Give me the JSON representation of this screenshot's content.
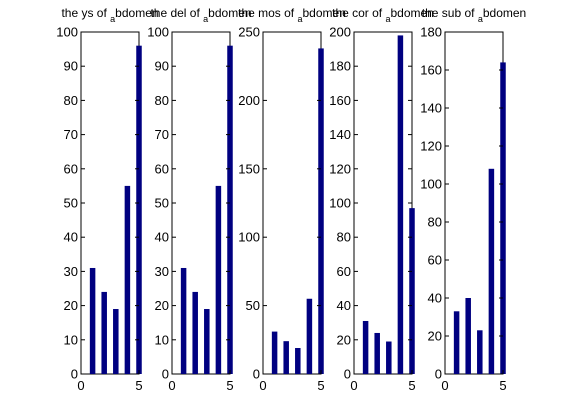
{
  "chart_data": [
    {
      "type": "bar",
      "title": {
        "prefix": "the ys of",
        "subscript": "a",
        "suffix": "bdomen"
      },
      "x": [
        1,
        2,
        3,
        4,
        5
      ],
      "values": [
        31,
        24,
        19,
        55,
        96
      ],
      "xlim": [
        0,
        5
      ],
      "xticks": [
        0,
        5
      ],
      "ylim": [
        0,
        100
      ],
      "yticks": [
        0,
        10,
        20,
        30,
        40,
        50,
        60,
        70,
        80,
        90,
        100
      ],
      "bar_color": "#000080",
      "grid": false
    },
    {
      "type": "bar",
      "title": {
        "prefix": "the del of",
        "subscript": "a",
        "suffix": "bdomen"
      },
      "x": [
        1,
        2,
        3,
        4,
        5
      ],
      "values": [
        31,
        24,
        19,
        55,
        96
      ],
      "xlim": [
        0,
        5
      ],
      "xticks": [
        0,
        5
      ],
      "ylim": [
        0,
        100
      ],
      "yticks": [
        0,
        10,
        20,
        30,
        40,
        50,
        60,
        70,
        80,
        90,
        100
      ],
      "bar_color": "#000080",
      "grid": false
    },
    {
      "type": "bar",
      "title": {
        "prefix": "the mos of",
        "subscript": "a",
        "suffix": "bdomen"
      },
      "x": [
        1,
        2,
        3,
        4,
        5
      ],
      "values": [
        31,
        24,
        19,
        55,
        238
      ],
      "xlim": [
        0,
        5
      ],
      "xticks": [
        0,
        5
      ],
      "ylim": [
        0,
        250
      ],
      "yticks": [
        0,
        50,
        100,
        150,
        200,
        250
      ],
      "bar_color": "#000080",
      "grid": false
    },
    {
      "type": "bar",
      "title": {
        "prefix": "the cor of",
        "subscript": "a",
        "suffix": "bdomen"
      },
      "x": [
        1,
        2,
        3,
        4,
        5
      ],
      "values": [
        31,
        24,
        19,
        198,
        97
      ],
      "xlim": [
        0,
        5
      ],
      "xticks": [
        0,
        5
      ],
      "ylim": [
        0,
        200
      ],
      "yticks": [
        0,
        20,
        40,
        60,
        80,
        100,
        120,
        140,
        160,
        180,
        200
      ],
      "bar_color": "#000080",
      "grid": false
    },
    {
      "type": "bar",
      "title": {
        "prefix": "the sub of",
        "subscript": "a",
        "suffix": "bdomen"
      },
      "x": [
        1,
        2,
        3,
        4,
        5
      ],
      "values": [
        33,
        40,
        23,
        108,
        164
      ],
      "xlim": [
        0,
        5
      ],
      "xticks": [
        0,
        5
      ],
      "ylim": [
        0,
        180
      ],
      "yticks": [
        0,
        20,
        40,
        60,
        80,
        100,
        120,
        140,
        160,
        180
      ],
      "bar_color": "#000080",
      "grid": false
    }
  ]
}
